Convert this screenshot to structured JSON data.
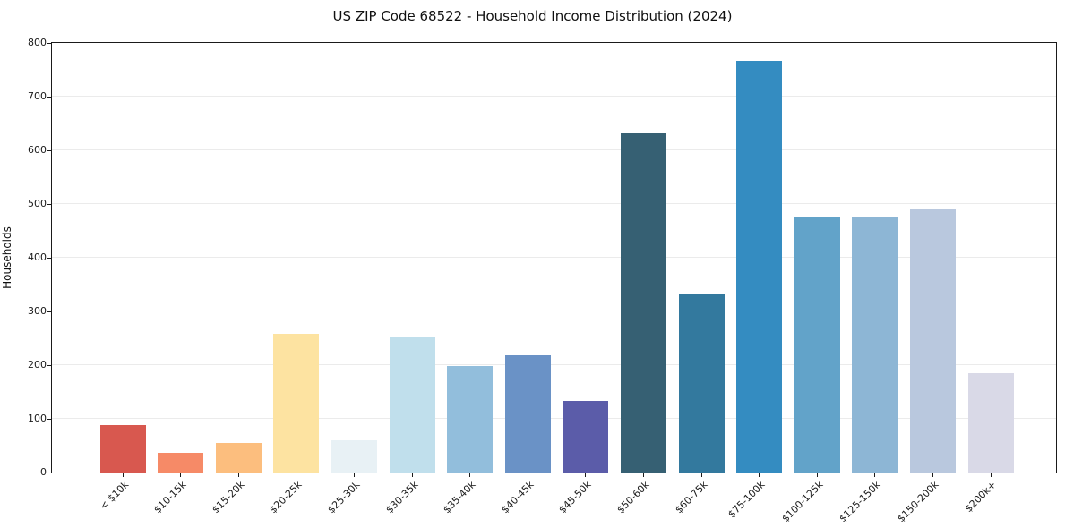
{
  "chart_data": {
    "type": "bar",
    "title": "US ZIP Code 68522 - Household Income Distribution (2024)",
    "xlabel": "",
    "ylabel": "Households",
    "ylim": [
      0,
      800
    ],
    "yticks": [
      0,
      100,
      200,
      300,
      400,
      500,
      600,
      700,
      800
    ],
    "grid": "horizontal",
    "grid_color": "#ebebeb",
    "legend": "none",
    "categories": [
      "< $10k",
      "$10-15k",
      "$15-20k",
      "$20-25k",
      "$25-30k",
      "$30-35k",
      "$35-40k",
      "$40-45k",
      "$45-50k",
      "$50-60k",
      "$60-75k",
      "$75-100k",
      "$100-125k",
      "$125-150k",
      "$150-200k",
      "$200k+"
    ],
    "values": [
      88,
      36,
      55,
      258,
      60,
      252,
      198,
      218,
      133,
      631,
      334,
      766,
      476,
      476,
      490,
      185
    ],
    "bar_colors": [
      "#d8584f",
      "#f68a67",
      "#fcbe7e",
      "#fde3a1",
      "#e8f1f5",
      "#c0dfec",
      "#92bedc",
      "#6a92c6",
      "#5b5ca9",
      "#366073",
      "#33799e",
      "#348cc1",
      "#62a3c9",
      "#8db6d5",
      "#b9c8de",
      "#d9d9e7"
    ]
  }
}
